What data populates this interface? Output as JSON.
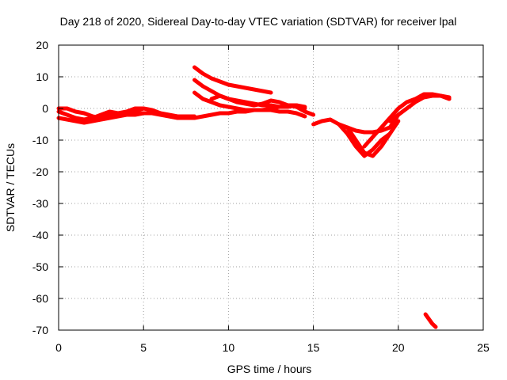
{
  "chart_data": {
    "type": "line",
    "title": "Day 218 of 2020, Sidereal Day-to-day VTEC variation (SDTVAR) for receiver lpal",
    "xlabel": "GPS time / hours",
    "ylabel": "SDTVAR / TECUs",
    "xlim": [
      0,
      25
    ],
    "ylim": [
      -70,
      20
    ],
    "xticks": [
      0,
      5,
      10,
      15,
      20,
      25
    ],
    "yticks": [
      20,
      10,
      0,
      -10,
      -20,
      -30,
      -40,
      -50,
      -60,
      -70
    ],
    "grid": true,
    "legend": "none",
    "color": "#ff0000",
    "series": [
      {
        "name": "trace-1",
        "x": [
          0,
          0.5,
          1,
          1.5,
          2,
          2.5,
          3,
          3.5,
          4,
          4.5,
          5,
          5.5,
          6,
          6.5,
          7,
          7.5,
          8
        ],
        "y": [
          -1,
          -2,
          -3,
          -3.5,
          -3,
          -2,
          -1,
          -1.5,
          -2,
          -1,
          0,
          -0.5,
          -1.5,
          -2,
          -2.5,
          -2.5,
          -2.5
        ]
      },
      {
        "name": "trace-2",
        "x": [
          0,
          0.5,
          1,
          1.5,
          2,
          2.5,
          3,
          3.5,
          4,
          4.5,
          5,
          5.5,
          6,
          6.5,
          7,
          7.5,
          8,
          8.5,
          9,
          9.5,
          10,
          10.5,
          11,
          11.5,
          12,
          12.5,
          13,
          13.5,
          14,
          14.5
        ],
        "y": [
          -3,
          -3.5,
          -4,
          -4.5,
          -4,
          -3.5,
          -3,
          -2.5,
          -2,
          -2,
          -1.5,
          -1.5,
          -2,
          -2.5,
          -3,
          -3,
          -3,
          -2.5,
          -2,
          -1.5,
          -1.5,
          -1,
          -1,
          -0.5,
          -0.5,
          -0.5,
          -1,
          -1,
          -1.5,
          -2.5
        ]
      },
      {
        "name": "trace-3",
        "x": [
          0,
          0.5,
          1,
          1.5,
          2,
          2.5,
          3,
          3.5,
          4,
          4.5,
          5
        ],
        "y": [
          0,
          0,
          -1,
          -1.5,
          -2.5,
          -3,
          -2,
          -1.5,
          -1,
          0,
          0
        ]
      },
      {
        "name": "trace-4",
        "x": [
          8,
          8.5,
          9,
          9.5,
          10,
          10.5,
          11,
          11.5,
          12,
          12.5
        ],
        "y": [
          13,
          11,
          9.5,
          8.5,
          7.5,
          7,
          6.5,
          6,
          5.5,
          5
        ]
      },
      {
        "name": "trace-5",
        "x": [
          8,
          8.5,
          9,
          9.5,
          10,
          10.5,
          11,
          11.5,
          12,
          12.5,
          13,
          13.5,
          14,
          14.5
        ],
        "y": [
          9,
          7,
          5.5,
          4,
          3,
          2.5,
          2,
          1.5,
          1,
          1,
          0.5,
          0.5,
          1,
          0.5
        ]
      },
      {
        "name": "trace-6",
        "x": [
          8,
          8.5,
          9,
          9.5,
          10,
          10.5,
          11,
          11.5,
          12,
          12.5,
          13,
          13.5,
          14,
          14.5
        ],
        "y": [
          5,
          3,
          2,
          1,
          0.5,
          0,
          -0.5,
          -0.5,
          -0.5,
          0,
          0.5,
          1,
          1,
          0
        ]
      },
      {
        "name": "trace-7",
        "x": [
          9,
          9.5,
          10,
          10.5,
          11,
          11.5,
          12,
          12.5,
          13,
          13.5,
          14,
          14.5,
          15
        ],
        "y": [
          3,
          4,
          3,
          2,
          1.5,
          1,
          1.5,
          2.5,
          2,
          1,
          0.5,
          -1,
          -2
        ]
      },
      {
        "name": "trace-8",
        "x": [
          15,
          15.5,
          16,
          16.5,
          17,
          17.5,
          18,
          18.5,
          19,
          19.5,
          20
        ],
        "y": [
          -5,
          -4,
          -3.5,
          -5,
          -6,
          -7,
          -7.5,
          -7.5,
          -7,
          -6,
          -2
        ]
      },
      {
        "name": "trace-9",
        "x": [
          16.5,
          17,
          17.5,
          18,
          18.5,
          19,
          19.5
        ],
        "y": [
          -5,
          -8,
          -12,
          -15,
          -13,
          -10,
          -8
        ]
      },
      {
        "name": "trace-10",
        "x": [
          17,
          17.5,
          18,
          18.5,
          19,
          19.5,
          20
        ],
        "y": [
          -6,
          -10,
          -14,
          -15,
          -12,
          -8,
          -4
        ]
      },
      {
        "name": "trace-11",
        "x": [
          18,
          18.5,
          19,
          19.5,
          20,
          20.5,
          21,
          21.5,
          22,
          22.5,
          23
        ],
        "y": [
          -12,
          -9,
          -6,
          -3,
          0,
          2,
          3,
          4.5,
          4.5,
          4,
          3.5
        ]
      },
      {
        "name": "trace-12",
        "x": [
          19.5,
          20,
          20.5,
          21,
          21.5,
          22,
          22.5,
          23
        ],
        "y": [
          -4,
          -2,
          0,
          2,
          3.5,
          4,
          4,
          3
        ]
      },
      {
        "name": "trace-13",
        "x": [
          21.6,
          21.8,
          22,
          22.2
        ],
        "y": [
          -65,
          -66.5,
          -68,
          -69
        ]
      }
    ]
  }
}
